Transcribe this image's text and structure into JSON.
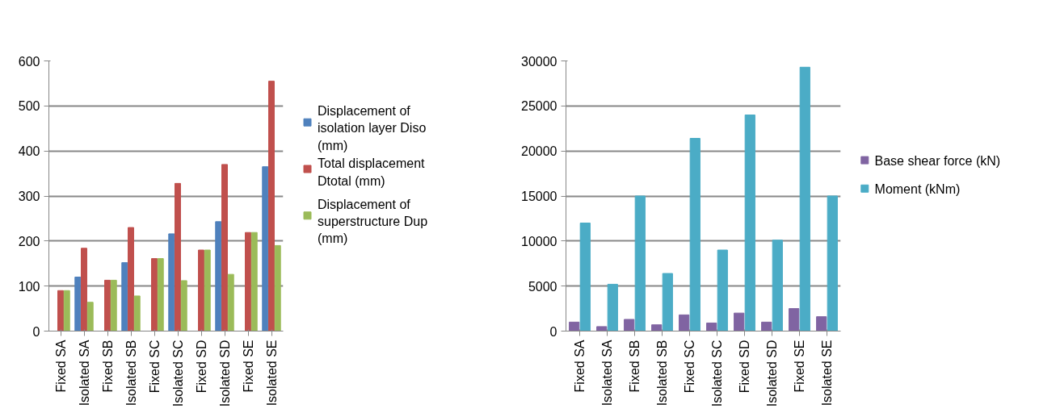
{
  "chart_data": [
    {
      "type": "bar",
      "categories": [
        "Fixed SA",
        "Isolated SA",
        "Fixed SB",
        "Isolated SB",
        "Fixed SC",
        "Isolated SC",
        "Fixed SD",
        "Isolated SD",
        "Fixed SE",
        "Isolated SE"
      ],
      "series": [
        {
          "name": "Displacement of isolation layer Diso (mm)",
          "color": "#4f81bd",
          "values": [
            0,
            120,
            0,
            152,
            0,
            216,
            0,
            243,
            0,
            365
          ]
        },
        {
          "name": "Total displacement Dtotal (mm)",
          "color": "#c0504d",
          "values": [
            90,
            184,
            113,
            230,
            161,
            328,
            180,
            370,
            219,
            555
          ]
        },
        {
          "name": "Displacement of superstructure Dup (mm)",
          "color": "#9bbb59",
          "values": [
            90,
            64,
            113,
            78,
            161,
            112,
            180,
            126,
            219,
            190
          ]
        }
      ],
      "ylim": [
        0,
        600
      ],
      "yticks": [
        0,
        100,
        200,
        300,
        400,
        500,
        600
      ],
      "grid": "y",
      "legend": "right"
    },
    {
      "type": "bar",
      "categories": [
        "Fixed SA",
        "Isolated SA",
        "Fixed SB",
        "Isolated SB",
        "Fixed SC",
        "Isolated SC",
        "Fixed SD",
        "Isolated SD",
        "Fixed SE",
        "Isolated SE"
      ],
      "series": [
        {
          "name": "Base shear force (kN)",
          "color": "#8064a2",
          "values": [
            1000,
            500,
            1300,
            700,
            1800,
            900,
            2000,
            1000,
            2500,
            1600
          ]
        },
        {
          "name": "Moment (kNm)",
          "color": "#4bacc6",
          "values": [
            12000,
            5200,
            15000,
            6400,
            21400,
            9000,
            24000,
            10100,
            29300,
            15000
          ]
        }
      ],
      "ylim": [
        0,
        30000
      ],
      "yticks": [
        0,
        5000,
        10000,
        15000,
        20000,
        25000,
        30000
      ],
      "grid": "y",
      "legend": "right"
    }
  ]
}
